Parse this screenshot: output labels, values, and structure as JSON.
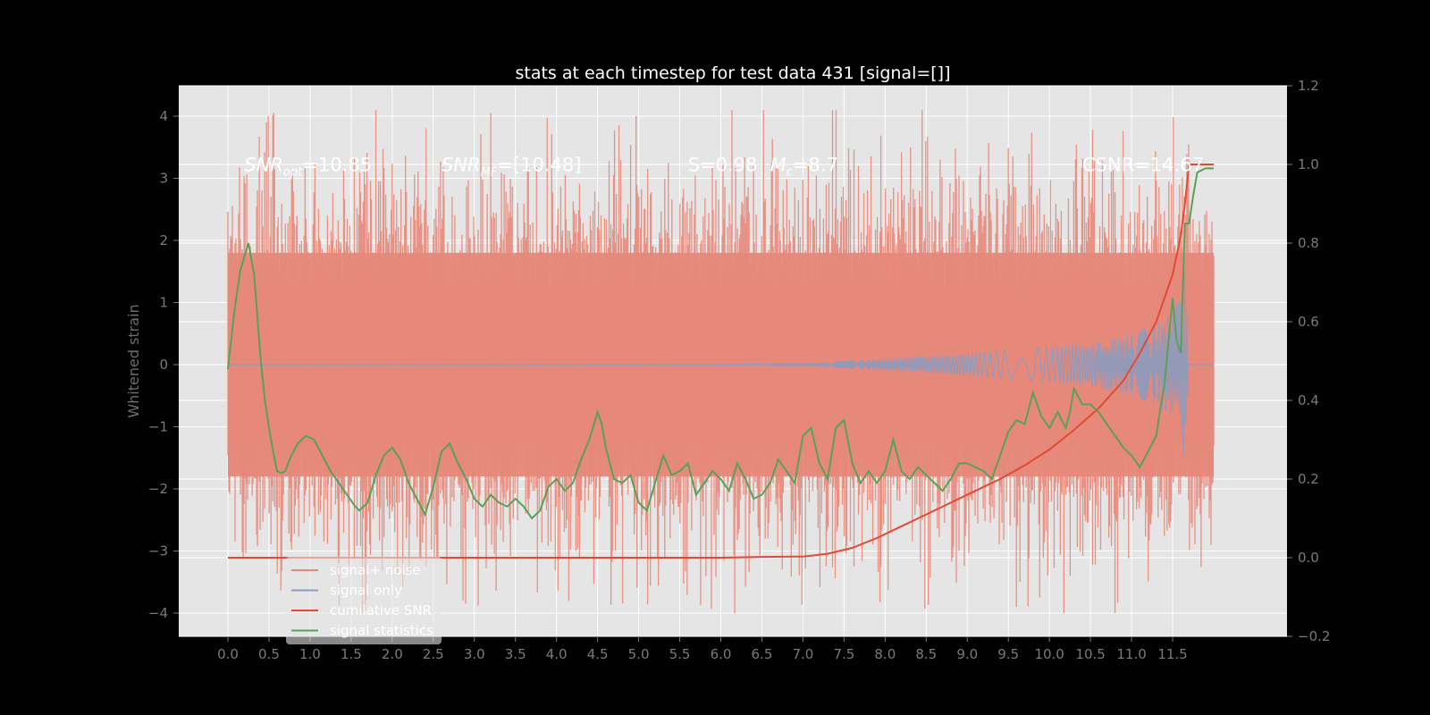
{
  "chart_data": {
    "type": "line",
    "title": "stats at each timestep for test data 431 [signal=[]]",
    "ylabel": "Whitened strain",
    "xlim": [
      -0.6,
      12.6
    ],
    "ylim": [
      -4.4,
      4.5
    ],
    "ylim_right": [
      -0.2,
      1.2
    ],
    "x_ticks": [
      0.0,
      0.5,
      1.0,
      1.5,
      2.0,
      2.5,
      3.0,
      3.5,
      4.0,
      4.5,
      5.0,
      5.5,
      6.0,
      6.5,
      7.0,
      7.5,
      8.0,
      8.5,
      9.0,
      9.5,
      10.0,
      10.5,
      11.0,
      11.5
    ],
    "x_tick_labels": [
      "0.0",
      "0.5",
      "1.0",
      "1.5",
      "2.0",
      "2.5",
      "3.0",
      "3.5",
      "4.0",
      "4.5",
      "5.0",
      "5.5",
      "6.0",
      "6.5",
      "7.0",
      "7.5",
      "8.0",
      "8.5",
      "9.0",
      "9.5",
      "10.0",
      "10.5",
      "11.0",
      "11.5"
    ],
    "y_ticks": [
      -4,
      -3,
      -2,
      -1,
      0,
      1,
      2,
      3,
      4
    ],
    "y_tick_labels": [
      "−4",
      "−3",
      "−2",
      "−1",
      "0",
      "1",
      "2",
      "3",
      "4"
    ],
    "y2_ticks": [
      -0.2,
      0.0,
      0.2,
      0.4,
      0.6,
      0.8,
      1.0,
      1.2
    ],
    "y2_tick_labels": [
      "−0.2",
      "0.0",
      "0.2",
      "0.4",
      "0.6",
      "0.8",
      "1.0",
      "1.2"
    ],
    "grid": true,
    "legend_placement": "lower-left",
    "annotations": [
      {
        "text": "SNR_opt=10.85",
        "x": 0.2,
        "y": 3.3
      },
      {
        "text": "SNR_MF=[10.48]",
        "x": 2.6,
        "y": 3.3
      },
      {
        "text": "S=0.98",
        "x": 5.6,
        "y": 3.3
      },
      {
        "text": "M_c=8.7",
        "x": 6.6,
        "y": 3.3
      },
      {
        "text": "CSNR=14.67",
        "x": 10.4,
        "y": 3.3
      }
    ],
    "noise_band": {
      "x_start": 0.0,
      "x_end": 12.0,
      "typical_low": -1.8,
      "typical_high": 1.8,
      "peak_high": 4.1,
      "peak_low": -4.0
    },
    "series": [
      {
        "name": "signal+ noise",
        "axis": "left",
        "color": "#e5887a",
        "kind": "noise"
      },
      {
        "name": "signal only",
        "axis": "left",
        "color": "#8c9bbf",
        "kind": "chirp",
        "envelope_x": [
          0.0,
          6.0,
          7.0,
          8.0,
          9.0,
          10.0,
          10.5,
          11.0,
          11.3,
          11.5,
          11.6,
          11.65,
          11.7,
          12.0
        ],
        "envelope_y": [
          0.0,
          0.01,
          0.02,
          0.1,
          0.18,
          0.28,
          0.35,
          0.5,
          0.65,
          0.85,
          1.1,
          1.7,
          0.0,
          0.0
        ]
      },
      {
        "name": "cumilative SNR",
        "axis": "right",
        "color": "#e24a33",
        "x": [
          0.0,
          1.0,
          2.0,
          3.0,
          4.0,
          5.0,
          6.0,
          6.5,
          7.0,
          7.3,
          7.6,
          7.9,
          8.2,
          8.5,
          8.8,
          9.1,
          9.4,
          9.7,
          10.0,
          10.3,
          10.6,
          10.9,
          11.1,
          11.3,
          11.5,
          11.6,
          11.65,
          11.7,
          12.0
        ],
        "y": [
          0.0,
          0.0,
          0.0,
          0.0,
          0.0,
          0.0,
          0.0,
          0.002,
          0.003,
          0.01,
          0.025,
          0.05,
          0.08,
          0.11,
          0.14,
          0.17,
          0.2,
          0.235,
          0.275,
          0.325,
          0.38,
          0.45,
          0.52,
          0.6,
          0.72,
          0.82,
          0.9,
          1.0,
          1.0
        ]
      },
      {
        "name": "signal statistics",
        "axis": "right",
        "color": "#348abd",
        "display_color": "#5aa05a",
        "x": [
          0.0,
          0.08,
          0.15,
          0.25,
          0.32,
          0.4,
          0.45,
          0.5,
          0.55,
          0.6,
          0.65,
          0.7,
          0.75,
          0.85,
          0.95,
          1.05,
          1.15,
          1.25,
          1.35,
          1.45,
          1.55,
          1.6,
          1.7,
          1.8,
          1.9,
          2.0,
          2.1,
          2.2,
          2.3,
          2.4,
          2.5,
          2.6,
          2.7,
          2.8,
          2.9,
          3.0,
          3.1,
          3.2,
          3.3,
          3.4,
          3.5,
          3.6,
          3.7,
          3.8,
          3.9,
          4.0,
          4.1,
          4.2,
          4.3,
          4.4,
          4.5,
          4.55,
          4.6,
          4.7,
          4.8,
          4.9,
          5.0,
          5.1,
          5.2,
          5.3,
          5.4,
          5.5,
          5.6,
          5.7,
          5.8,
          5.9,
          6.0,
          6.1,
          6.2,
          6.3,
          6.4,
          6.5,
          6.6,
          6.7,
          6.8,
          6.9,
          7.0,
          7.1,
          7.2,
          7.3,
          7.4,
          7.5,
          7.6,
          7.7,
          7.8,
          7.9,
          8.0,
          8.1,
          8.2,
          8.3,
          8.4,
          8.5,
          8.6,
          8.7,
          8.8,
          8.9,
          9.0,
          9.1,
          9.2,
          9.3,
          9.4,
          9.5,
          9.6,
          9.7,
          9.8,
          9.9,
          10.0,
          10.1,
          10.2,
          10.25,
          10.3,
          10.4,
          10.5,
          10.6,
          10.7,
          10.8,
          10.9,
          11.0,
          11.1,
          11.2,
          11.3,
          11.35,
          11.4,
          11.5,
          11.55,
          11.6,
          11.65,
          11.7,
          11.75,
          11.8,
          11.9,
          12.0
        ],
        "y": [
          0.48,
          0.63,
          0.73,
          0.8,
          0.72,
          0.5,
          0.4,
          0.33,
          0.27,
          0.22,
          0.215,
          0.22,
          0.25,
          0.29,
          0.31,
          0.3,
          0.26,
          0.22,
          0.19,
          0.16,
          0.13,
          0.12,
          0.14,
          0.21,
          0.26,
          0.28,
          0.25,
          0.19,
          0.15,
          0.11,
          0.18,
          0.27,
          0.29,
          0.24,
          0.2,
          0.15,
          0.13,
          0.16,
          0.14,
          0.13,
          0.15,
          0.13,
          0.1,
          0.12,
          0.18,
          0.2,
          0.17,
          0.19,
          0.25,
          0.3,
          0.37,
          0.34,
          0.28,
          0.2,
          0.19,
          0.21,
          0.14,
          0.12,
          0.19,
          0.26,
          0.21,
          0.22,
          0.24,
          0.16,
          0.19,
          0.22,
          0.2,
          0.17,
          0.24,
          0.2,
          0.15,
          0.16,
          0.19,
          0.25,
          0.22,
          0.19,
          0.31,
          0.33,
          0.24,
          0.2,
          0.33,
          0.35,
          0.24,
          0.19,
          0.22,
          0.19,
          0.22,
          0.3,
          0.22,
          0.2,
          0.23,
          0.21,
          0.19,
          0.17,
          0.2,
          0.24,
          0.24,
          0.23,
          0.22,
          0.2,
          0.26,
          0.32,
          0.35,
          0.34,
          0.42,
          0.36,
          0.33,
          0.37,
          0.33,
          0.37,
          0.43,
          0.39,
          0.39,
          0.37,
          0.34,
          0.31,
          0.28,
          0.26,
          0.23,
          0.27,
          0.31,
          0.38,
          0.44,
          0.66,
          0.55,
          0.52,
          0.85,
          0.85,
          0.92,
          0.98,
          0.99,
          0.99
        ]
      }
    ]
  }
}
